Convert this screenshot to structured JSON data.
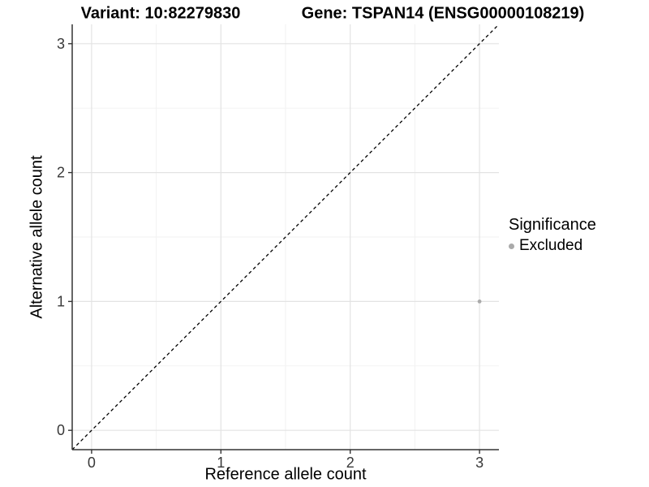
{
  "chart_data": {
    "type": "scatter",
    "title_left": "Variant: 10:82279830",
    "title_right": "Gene: TSPAN14 (ENSG00000108219)",
    "xlabel": "Reference allele count",
    "ylabel": "Alternative allele count",
    "xlim": [
      -0.15,
      3.15
    ],
    "ylim": [
      -0.15,
      3.15
    ],
    "x_ticks": [
      0,
      1,
      2,
      3
    ],
    "y_ticks": [
      0,
      1,
      2,
      3
    ],
    "grid": {
      "major": true,
      "minor": true,
      "x_minor": [
        0.5,
        1.5,
        2.5
      ],
      "y_minor": [
        0.5,
        1.5,
        2.5
      ]
    },
    "points": [
      {
        "x": 3,
        "y": 1,
        "series": "Excluded"
      }
    ],
    "reference_line": {
      "kind": "identity",
      "style": "dashed",
      "color": "#000000"
    },
    "legend": {
      "title": "Significance",
      "position": "right",
      "entries": [
        {
          "label": "Excluded",
          "color": "#aaaaaa"
        }
      ]
    },
    "colors": {
      "background": "#ffffff",
      "grid_major": "#e3e3e3",
      "grid_minor": "#f1f1f1",
      "axis_line": "#333333",
      "tick_text": "#383838",
      "title_text": "#000000"
    }
  }
}
